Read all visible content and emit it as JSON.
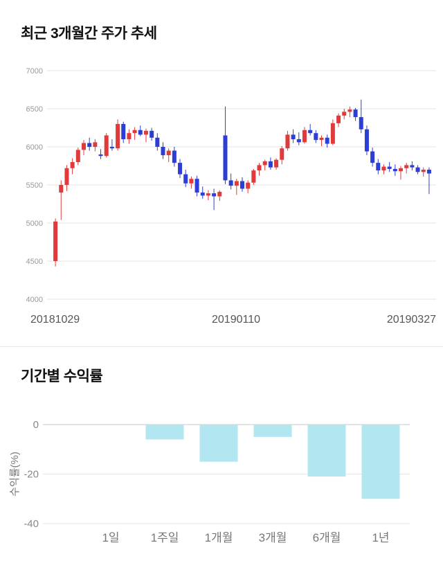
{
  "page": {
    "background": "#ffffff"
  },
  "chart_data": [
    {
      "type": "candlestick",
      "title": "최근 3개월간 주가 추세",
      "ylim": [
        4000,
        7000
      ],
      "yticks": [
        4000,
        4500,
        5000,
        5500,
        6000,
        6500,
        7000
      ],
      "x_axis_labels": [
        "20181029",
        "20190110",
        "20190327"
      ],
      "grid": true,
      "up_color": "#e03a3a",
      "down_color": "#2c3ed6",
      "grid_color": "#e3e3e3",
      "ytick_color": "#999999",
      "xlabel_color": "#555555",
      "candles_ohlc": [
        [
          4500,
          5060,
          4430,
          5020
        ],
        [
          5400,
          5560,
          5040,
          5500
        ],
        [
          5500,
          5760,
          5420,
          5720
        ],
        [
          5720,
          5850,
          5640,
          5800
        ],
        [
          5800,
          5990,
          5760,
          5960
        ],
        [
          5960,
          6090,
          5890,
          6050
        ],
        [
          6050,
          6120,
          5950,
          6000
        ],
        [
          6000,
          6100,
          5940,
          6060
        ],
        [
          5900,
          5970,
          5840,
          5880
        ],
        [
          5880,
          6180,
          5860,
          6150
        ],
        [
          6000,
          6100,
          5950,
          5980
        ],
        [
          5980,
          6360,
          5950,
          6300
        ],
        [
          6300,
          6330,
          6050,
          6100
        ],
        [
          6100,
          6230,
          6040,
          6180
        ],
        [
          6180,
          6260,
          6090,
          6220
        ],
        [
          6220,
          6280,
          6140,
          6160
        ],
        [
          6160,
          6240,
          6060,
          6210
        ],
        [
          6210,
          6250,
          6080,
          6120
        ],
        [
          6120,
          6180,
          5950,
          6000
        ],
        [
          6000,
          6060,
          5840,
          5890
        ],
        [
          5890,
          5980,
          5800,
          5950
        ],
        [
          5950,
          6000,
          5740,
          5790
        ],
        [
          5790,
          5840,
          5590,
          5640
        ],
        [
          5640,
          5700,
          5470,
          5520
        ],
        [
          5520,
          5610,
          5450,
          5580
        ],
        [
          5580,
          5620,
          5350,
          5400
        ],
        [
          5400,
          5480,
          5320,
          5360
        ],
        [
          5360,
          5430,
          5300,
          5390
        ],
        [
          5390,
          5450,
          5170,
          5350
        ],
        [
          5350,
          5430,
          5290,
          5410
        ],
        [
          6150,
          6530,
          5510,
          5560
        ],
        [
          5560,
          5650,
          5440,
          5490
        ],
        [
          5490,
          5580,
          5370,
          5550
        ],
        [
          5550,
          5600,
          5410,
          5450
        ],
        [
          5450,
          5560,
          5390,
          5530
        ],
        [
          5530,
          5710,
          5500,
          5690
        ],
        [
          5690,
          5790,
          5620,
          5760
        ],
        [
          5760,
          5830,
          5690,
          5810
        ],
        [
          5810,
          5860,
          5700,
          5730
        ],
        [
          5730,
          5850,
          5700,
          5830
        ],
        [
          5830,
          6010,
          5770,
          5980
        ],
        [
          5980,
          6210,
          5950,
          6160
        ],
        [
          6160,
          6230,
          6050,
          6100
        ],
        [
          6100,
          6190,
          6020,
          6060
        ],
        [
          6060,
          6260,
          6040,
          6220
        ],
        [
          6220,
          6300,
          6150,
          6180
        ],
        [
          6180,
          6220,
          6050,
          6090
        ],
        [
          6090,
          6150,
          6010,
          6120
        ],
        [
          6120,
          6160,
          5990,
          6040
        ],
        [
          6040,
          6360,
          6020,
          6310
        ],
        [
          6310,
          6440,
          6260,
          6410
        ],
        [
          6410,
          6500,
          6360,
          6460
        ],
        [
          6460,
          6530,
          6390,
          6490
        ],
        [
          6490,
          6510,
          6340,
          6390
        ],
        [
          6390,
          6620,
          6180,
          6230
        ],
        [
          6230,
          6280,
          5890,
          5940
        ],
        [
          5940,
          5990,
          5740,
          5790
        ],
        [
          5790,
          5840,
          5640,
          5690
        ],
        [
          5690,
          5770,
          5640,
          5740
        ],
        [
          5740,
          5800,
          5670,
          5710
        ],
        [
          5710,
          5770,
          5620,
          5680
        ],
        [
          5680,
          5750,
          5570,
          5720
        ],
        [
          5720,
          5790,
          5650,
          5760
        ],
        [
          5760,
          5810,
          5690,
          5730
        ],
        [
          5730,
          5760,
          5640,
          5670
        ],
        [
          5670,
          5730,
          5610,
          5700
        ],
        [
          5700,
          5730,
          5380,
          5650
        ]
      ]
    },
    {
      "type": "bar",
      "title": "기간별 수익률",
      "categories": [
        "1일",
        "1주일",
        "1개월",
        "3개월",
        "6개월",
        "1년"
      ],
      "values": [
        0,
        -6,
        -15,
        -5,
        -21,
        -30
      ],
      "ylabel": "수익률(%)",
      "ylim": [
        -40,
        0
      ],
      "yticks": [
        0,
        -20,
        -40
      ],
      "grid": true,
      "bar_color": "#b2e6f0",
      "zero_line_color": "#c9c9c9",
      "grid_color": "#e6e6e6",
      "ytick_color": "#888888",
      "category_color": "#777777",
      "ylabel_color": "#777777"
    }
  ]
}
